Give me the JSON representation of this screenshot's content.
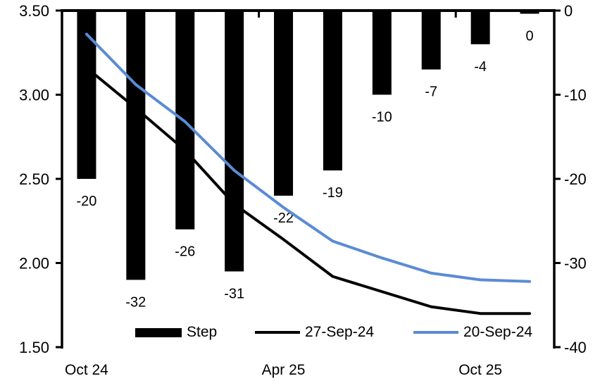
{
  "chart_data": {
    "type": "combo-bar-line",
    "title": "",
    "n_categories": 10,
    "x_axis": {
      "labels": [
        {
          "text": "Oct 24",
          "category_index": 0
        },
        {
          "text": "Apr 25",
          "category_index": 4
        },
        {
          "text": "Oct 25",
          "category_index": 8
        }
      ],
      "boundary_tick_indices": [
        0,
        4,
        8
      ]
    },
    "left_axis": {
      "min": 1.5,
      "max": 3.5,
      "tick_labels": [
        "3.50",
        "3.00",
        "2.50",
        "2.00",
        "1.50"
      ]
    },
    "right_axis": {
      "min": -40,
      "max": 0,
      "tick_labels": [
        "0",
        "-10",
        "-20",
        "-30",
        "-40"
      ]
    },
    "bar_series": {
      "name": "Step",
      "axis": "right",
      "color": "#000000",
      "values": [
        -20,
        -32,
        -26,
        -31,
        -22,
        -19,
        -10,
        -7,
        -4,
        0
      ],
      "data_labels": [
        "-20",
        "-32",
        "-26",
        "-31",
        "-22",
        "-19",
        "-10",
        "-7",
        "-4",
        "0"
      ]
    },
    "line_series": [
      {
        "name": "27-Sep-24",
        "axis": "left",
        "color": "#000000",
        "values": [
          3.16,
          2.92,
          2.67,
          2.35,
          2.14,
          1.92,
          1.83,
          1.74,
          1.7,
          1.7
        ]
      },
      {
        "name": "20-Sep-24",
        "axis": "left",
        "color": "#5B8BD4",
        "values": [
          3.36,
          3.06,
          2.84,
          2.55,
          2.33,
          2.13,
          2.03,
          1.94,
          1.9,
          1.89
        ]
      }
    ],
    "legend": {
      "position": "bottom",
      "items": [
        {
          "label": "Step",
          "type": "bar",
          "color": "#000000"
        },
        {
          "label": "27-Sep-24",
          "type": "line",
          "color": "#000000"
        },
        {
          "label": "20-Sep-24",
          "type": "line",
          "color": "#5B8BD4"
        }
      ]
    },
    "grid": false,
    "background": "#ffffff"
  }
}
